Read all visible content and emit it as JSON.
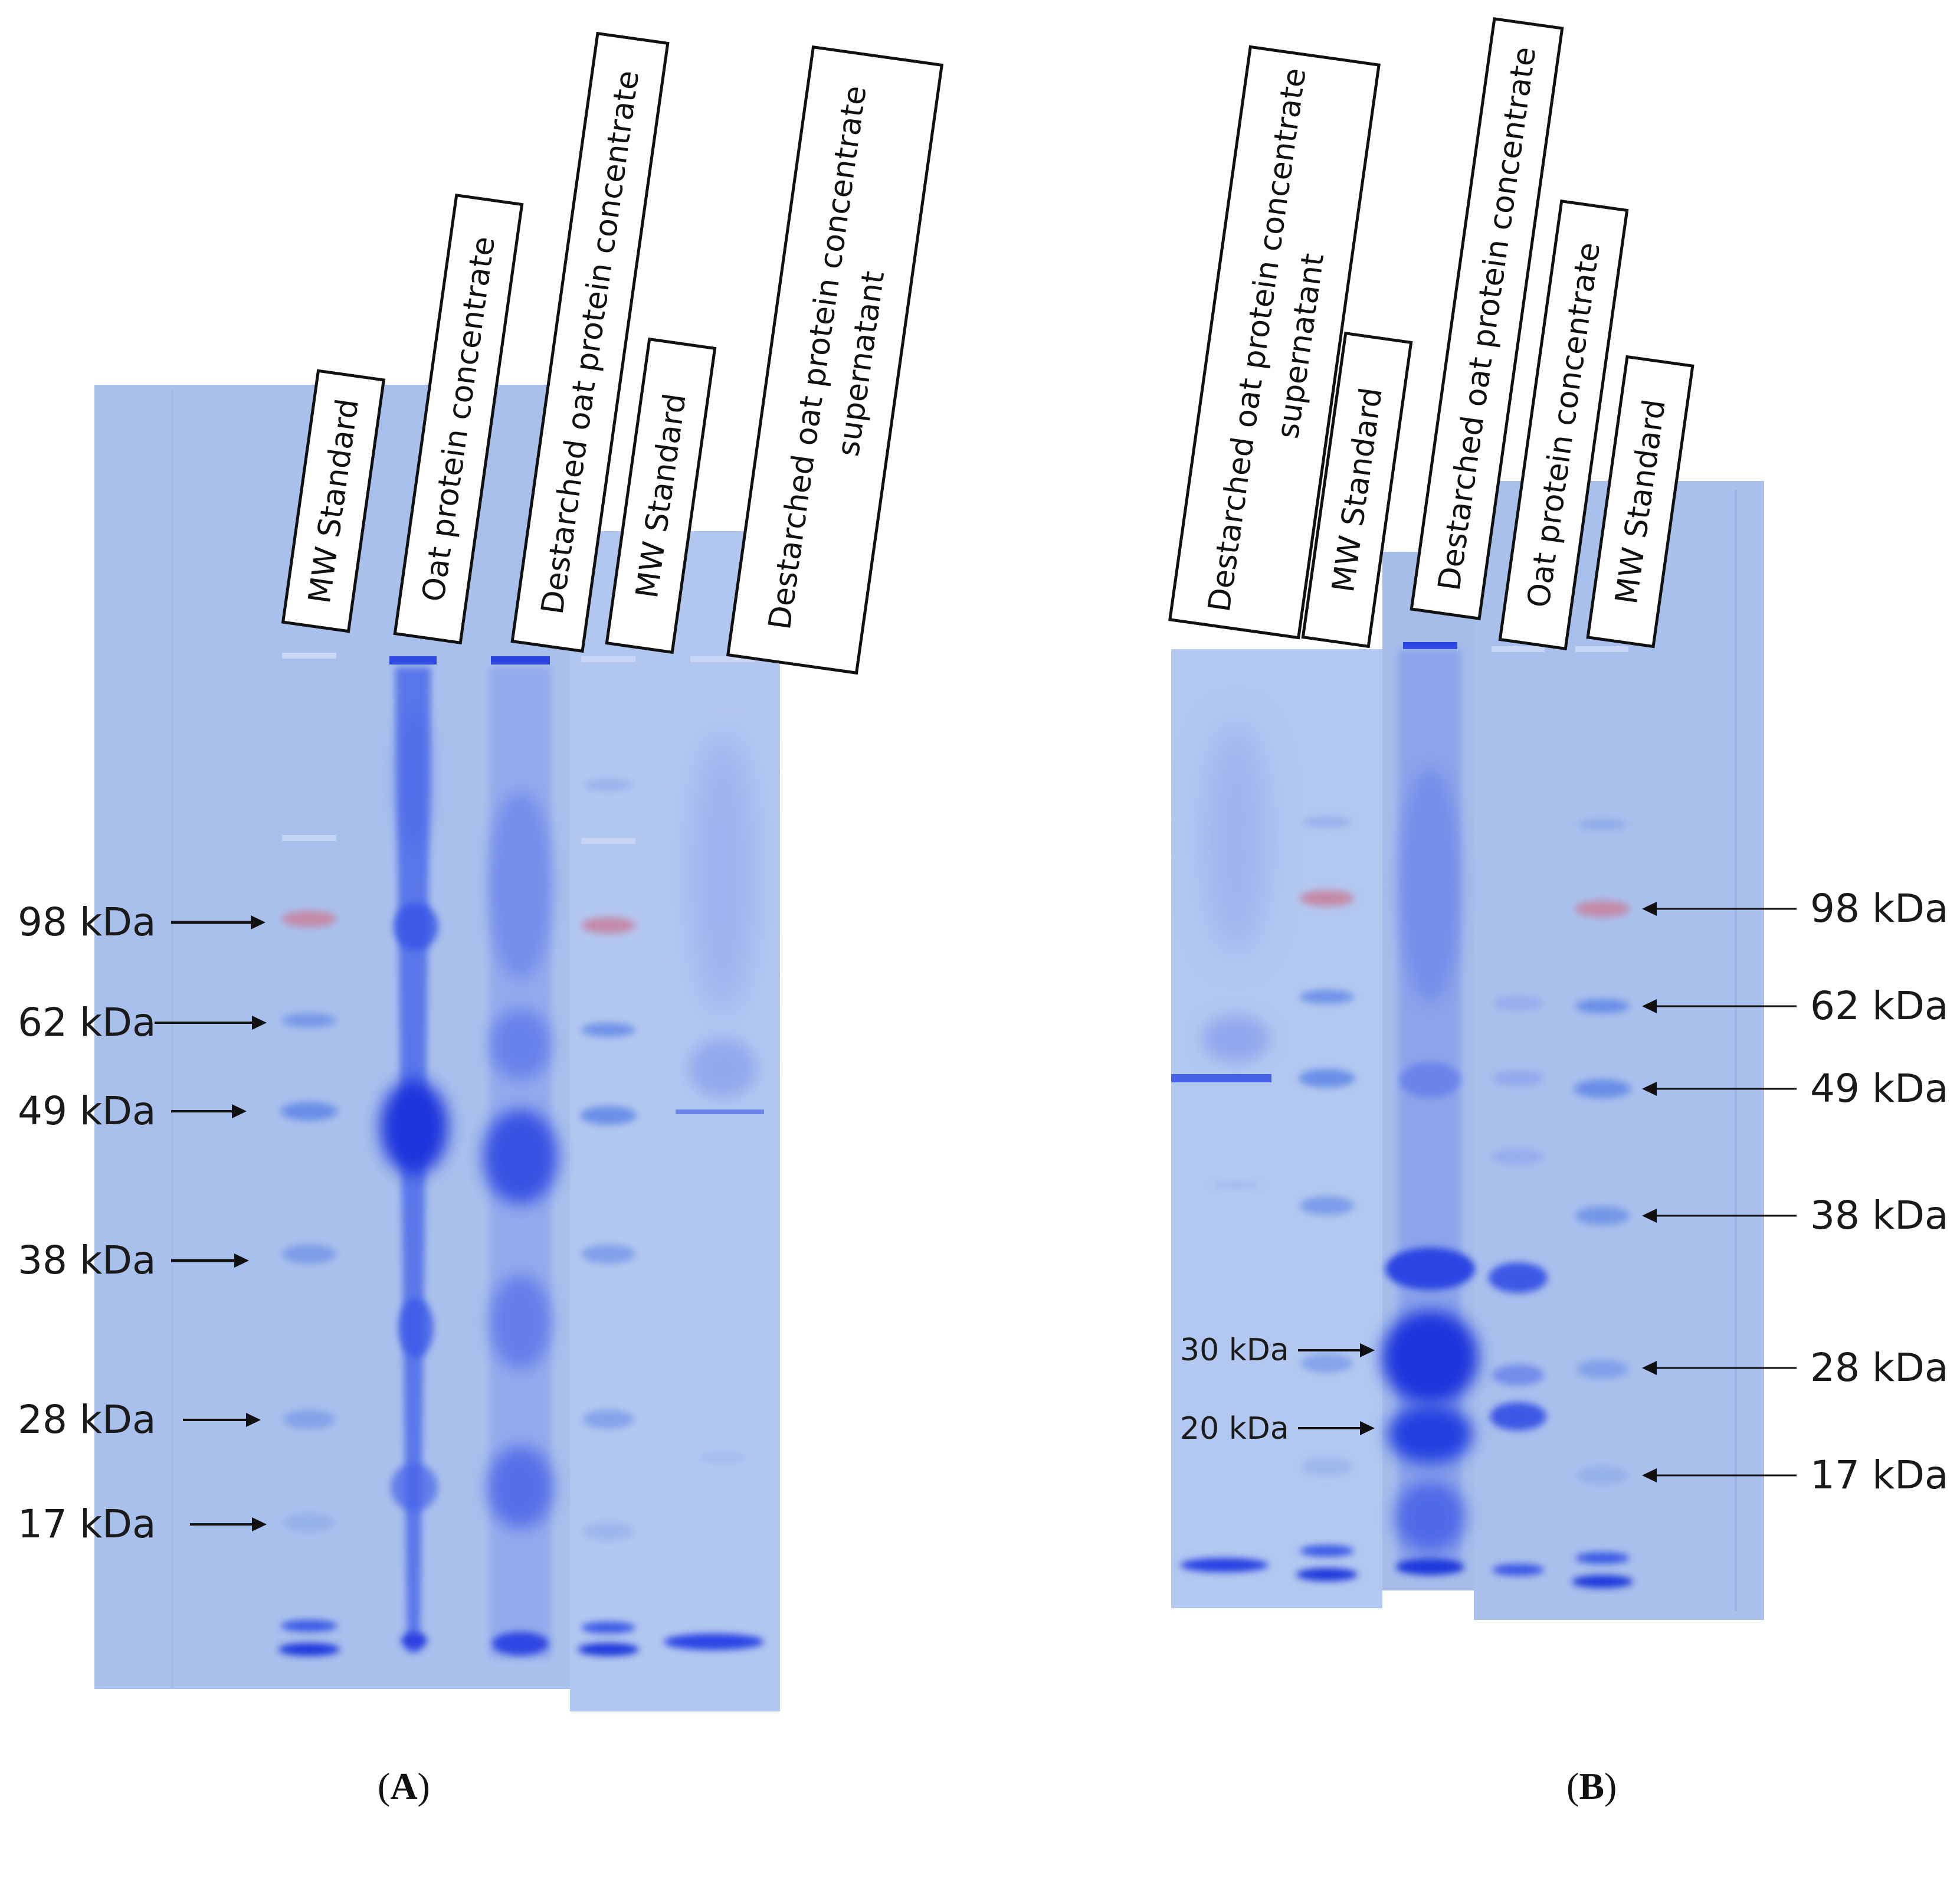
{
  "panels": [
    {
      "id": "A",
      "caption_letter": "A",
      "lanes": [
        {
          "label_lines": [
            "MW Standard"
          ]
        },
        {
          "label_lines": [
            "Oat protein concentrate"
          ]
        },
        {
          "label_lines": [
            "Destarched oat protein concentrate"
          ]
        },
        {
          "label_lines": [
            "MW Standard"
          ]
        },
        {
          "label_lines": [
            "Destarched oat protein concentrate",
            "supernatant"
          ]
        }
      ],
      "markers": [
        "98 kDa",
        "62 kDa",
        "49 kDa",
        "38 kDa",
        "28 kDa",
        "17 kDa"
      ]
    },
    {
      "id": "B",
      "caption_letter": "B",
      "lanes": [
        {
          "label_lines": [
            "Destarched oat protein concentrate",
            "supernatant"
          ]
        },
        {
          "label_lines": [
            "MW Standard"
          ]
        },
        {
          "label_lines": [
            "Destarched oat protein concentrate"
          ]
        },
        {
          "label_lines": [
            "Oat protein concentrate"
          ]
        },
        {
          "label_lines": [
            "MW Standard"
          ]
        }
      ],
      "markers": [
        "98 kDa",
        "62 kDa",
        "49 kDa",
        "38 kDa",
        "28 kDa",
        "17 kDa"
      ],
      "inner_markers": [
        "30 kDa",
        "20 kDa"
      ]
    }
  ],
  "colors": {
    "gel_background": "#a9c0ec",
    "gel_strip": "#b3c8f0",
    "band_blue": "#2a3ee0",
    "band_pink": "#c48aa8",
    "ladder_blue": "#5e86e6"
  }
}
